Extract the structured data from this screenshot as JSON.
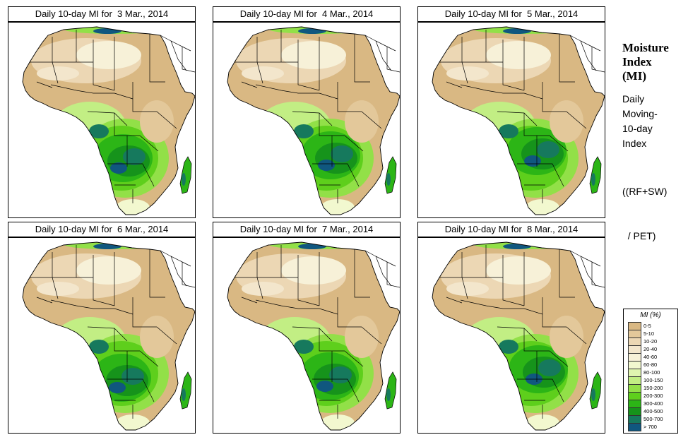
{
  "panels": [
    {
      "title": "Daily 10-day MI for  3 Mar., 2014"
    },
    {
      "title": "Daily 10-day MI for  4 Mar., 2014"
    },
    {
      "title": "Daily 10-day MI for  5 Mar., 2014"
    },
    {
      "title": "Daily 10-day MI for  6 Mar., 2014"
    },
    {
      "title": "Daily 10-day MI for  7 Mar., 2014"
    },
    {
      "title": "Daily 10-day MI for  8 Mar., 2014"
    }
  ],
  "sidebar": {
    "title_line1": "Moisture",
    "title_line2": "Index",
    "title_line3": "(MI)",
    "desc_line1": "Daily",
    "desc_line2": "Moving-",
    "desc_line3": "10-day",
    "desc_line4": "Index",
    "formula_line1": "((RF+SW)",
    "formula_line2": "  / PET)"
  },
  "legend": {
    "title": "MI (%)",
    "classes": [
      {
        "label": "0-5",
        "color": "#d9b883"
      },
      {
        "label": "5-10",
        "color": "#e3c89a"
      },
      {
        "label": "10-20",
        "color": "#ecd7b4"
      },
      {
        "label": "20-40",
        "color": "#f3e6cc"
      },
      {
        "label": "40-60",
        "color": "#f7f1d8"
      },
      {
        "label": "60-80",
        "color": "#f2f8cf"
      },
      {
        "label": "80-100",
        "color": "#e0f5b0"
      },
      {
        "label": "100-150",
        "color": "#c2ee84"
      },
      {
        "label": "150-200",
        "color": "#92e048"
      },
      {
        "label": "200-300",
        "color": "#5ecf1c"
      },
      {
        "label": "300-400",
        "color": "#2cb516"
      },
      {
        "label": "400-500",
        "color": "#16931b"
      },
      {
        "label": "500-700",
        "color": "#16795d"
      },
      {
        "label": "> 700",
        "color": "#10577f"
      }
    ]
  },
  "colors": {
    "ocean": "#ffffff",
    "dry": "#d9b883",
    "desert_light": "#efe0c3",
    "borders": "#000000"
  }
}
